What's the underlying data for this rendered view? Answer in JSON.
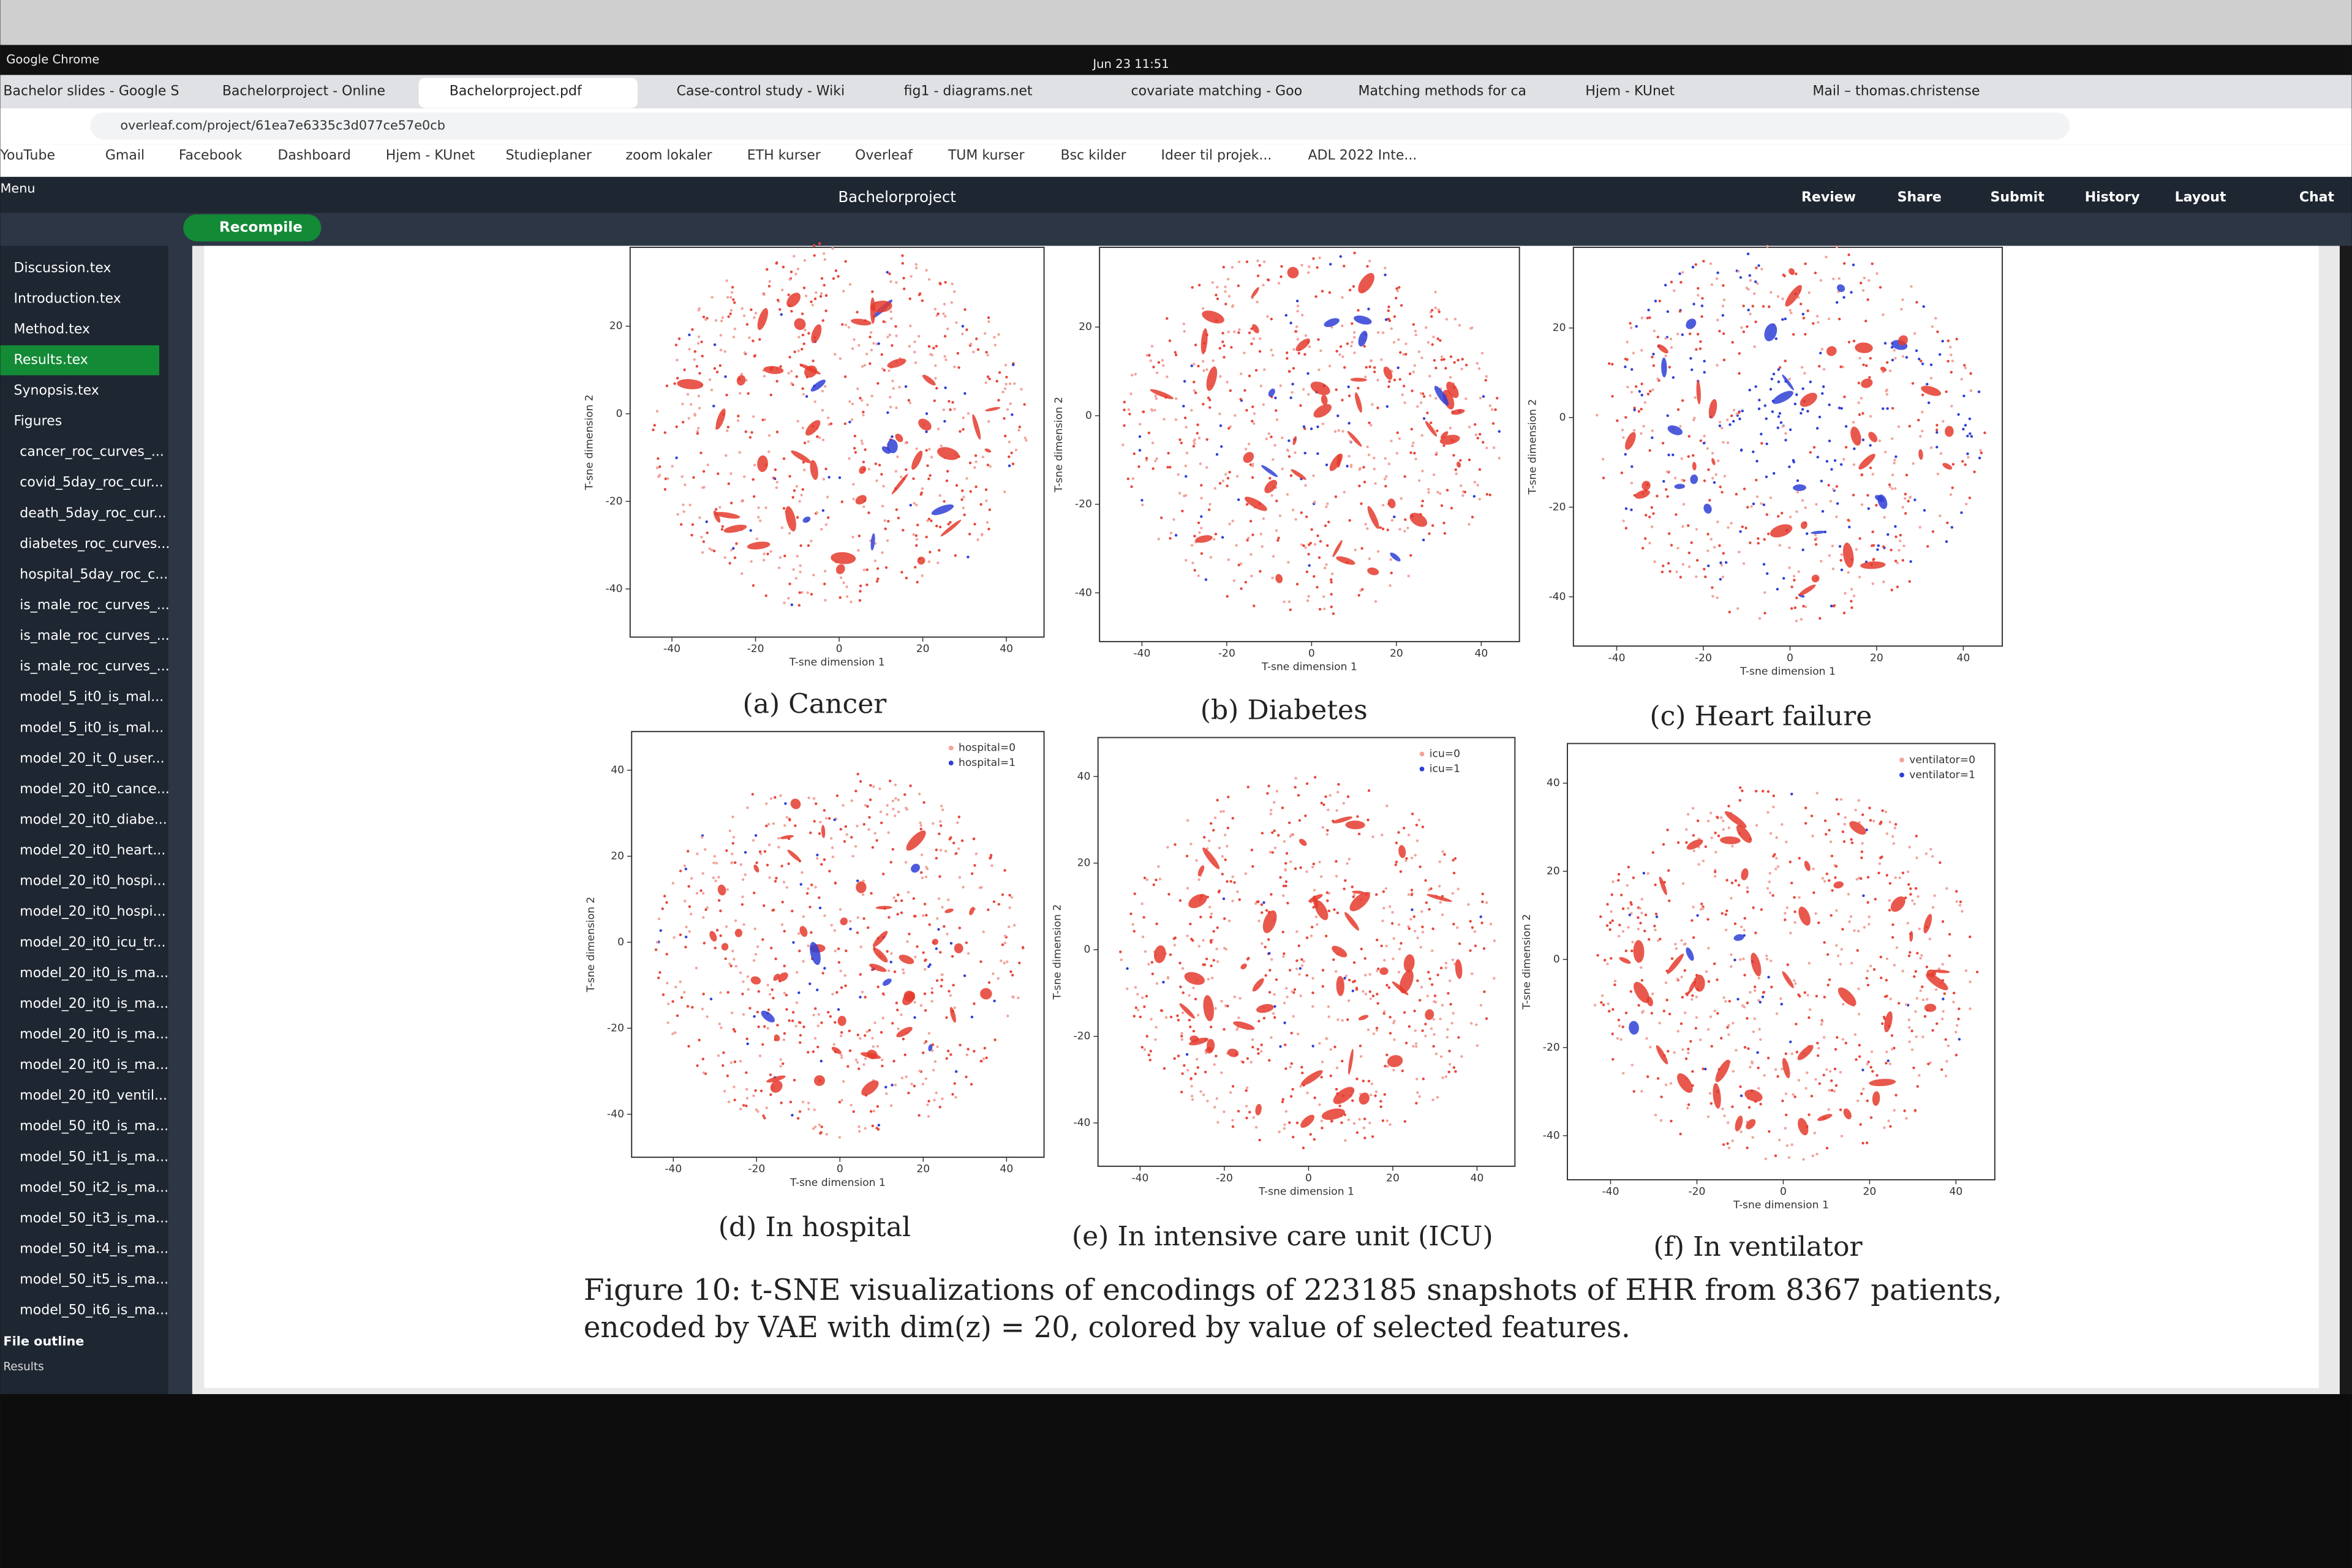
{
  "system_bar": {
    "app": "Google Chrome",
    "clock": "Jun 23  11:51"
  },
  "tabs": [
    "Bachelor slides - Google S",
    "Bachelorproject - Online",
    "Bachelorproject.pdf",
    "Case-control study - Wiki",
    "fig1 - diagrams.net",
    "covariate matching - Goo",
    "Matching methods for ca",
    "Hjem - KUnet",
    "Mail – thomas.christense"
  ],
  "address": "overleaf.com/project/61ea7e6335c3d077ce57e0cb",
  "bookmarks": [
    "YouTube",
    "Gmail",
    "Facebook",
    "Dashboard",
    "Hjem - KUnet",
    "Studieplaner",
    "zoom lokaler",
    "ETH kurser",
    "Overleaf",
    "TUM kurser",
    "Bsc kilder",
    "Ideer til projek...",
    "ADL 2022 Inte..."
  ],
  "editor": {
    "menu": "Menu",
    "project": "Bachelorproject",
    "recompile": "Recompile",
    "toolbar": [
      "Review",
      "Share",
      "Submit",
      "History",
      "Layout",
      "Chat"
    ]
  },
  "files": [
    "Discussion.tex",
    "Introduction.tex",
    "Method.tex",
    "Results.tex",
    "Synopsis.tex",
    "Figures",
    "cancer_roc_curves_...",
    "covid_5day_roc_cur...",
    "death_5day_roc_cur...",
    "diabetes_roc_curves...",
    "hospital_5day_roc_c...",
    "is_male_roc_curves_...",
    "is_male_roc_curves_...",
    "is_male_roc_curves_...",
    "model_5_it0_is_mal...",
    "model_5_it0_is_mal...",
    "model_20_it_0_user...",
    "model_20_it0_cance...",
    "model_20_it0_diabe...",
    "model_20_it0_heart...",
    "model_20_it0_hospi...",
    "model_20_it0_hospi...",
    "model_20_it0_icu_tr...",
    "model_20_it0_is_ma...",
    "model_20_it0_is_ma...",
    "model_20_it0_is_ma...",
    "model_20_it0_is_ma...",
    "model_20_it0_ventil...",
    "model_50_it0_is_ma...",
    "model_50_it1_is_ma...",
    "model_50_it2_is_ma...",
    "model_50_it3_is_ma...",
    "model_50_it4_is_ma...",
    "model_50_it5_is_ma...",
    "model_50_it6_is_ma..."
  ],
  "outline": {
    "title": "File outline",
    "item": "Results"
  },
  "figure": {
    "panels": [
      {
        "caption": "(a) Cancer",
        "xlabel": "T-sne dimension 1",
        "ylabel": "T-sne dimension 2",
        "xlim": [
          -50,
          49
        ],
        "ylim": [
          -51,
          38
        ],
        "xticks": [
          -40,
          -20,
          0,
          20,
          40
        ],
        "yticks": [
          20,
          0,
          -20,
          -40
        ]
      },
      {
        "caption": "(b) Diabetes",
        "xlabel": "T-sne dimension 1",
        "ylabel": "T-sne dimension 2",
        "xlim": [
          -50,
          49
        ],
        "ylim": [
          -51,
          38
        ],
        "xticks": [
          -40,
          -20,
          0,
          20,
          40
        ],
        "yticks": [
          20,
          0,
          -20,
          -40
        ]
      },
      {
        "caption": "(c) Heart failure",
        "xlabel": "T-sne dimension 1",
        "ylabel": "T-sne dimension 2",
        "xlim": [
          -50,
          49
        ],
        "ylim": [
          -51,
          38
        ],
        "xticks": [
          -40,
          -20,
          0,
          20,
          40
        ],
        "yticks": [
          20,
          0,
          -20,
          -40
        ]
      },
      {
        "caption": "(d) In hospital",
        "xlabel": "T-sne dimension 1",
        "ylabel": "T-sne dimension 2",
        "xlim": [
          -50,
          49
        ],
        "ylim": [
          -50,
          49
        ],
        "xticks": [
          -40,
          -20,
          0,
          20,
          40
        ],
        "yticks": [
          40,
          20,
          0,
          -20,
          -40
        ],
        "legend": [
          "hospital=0",
          "hospital=1"
        ]
      },
      {
        "caption": "(e) In intensive care unit (ICU)",
        "xlabel": "T-sne dimension 1",
        "ylabel": "T-sne dimension 2",
        "xlim": [
          -50,
          49
        ],
        "ylim": [
          -50,
          49
        ],
        "xticks": [
          -40,
          -20,
          0,
          20,
          40
        ],
        "yticks": [
          40,
          20,
          0,
          -20,
          -40
        ],
        "legend": [
          "icu=0",
          "icu=1"
        ]
      },
      {
        "caption": "(f) In ventilator",
        "xlabel": "T-sne dimension 1",
        "ylabel": "T-sne dimension 2",
        "xlim": [
          -50,
          49
        ],
        "ylim": [
          -50,
          49
        ],
        "xticks": [
          -40,
          -20,
          0,
          20,
          40
        ],
        "yticks": [
          40,
          20,
          0,
          -20,
          -40
        ],
        "legend": [
          "ventilator=0",
          "ventilator=1"
        ]
      }
    ],
    "caption": [
      "Figure 10: t-SNE visualizations of encodings of 223185 snapshots of EHR from 8367 patients,",
      "encoded by VAE with dim(z) = 20, colored by value of selected features."
    ]
  }
}
